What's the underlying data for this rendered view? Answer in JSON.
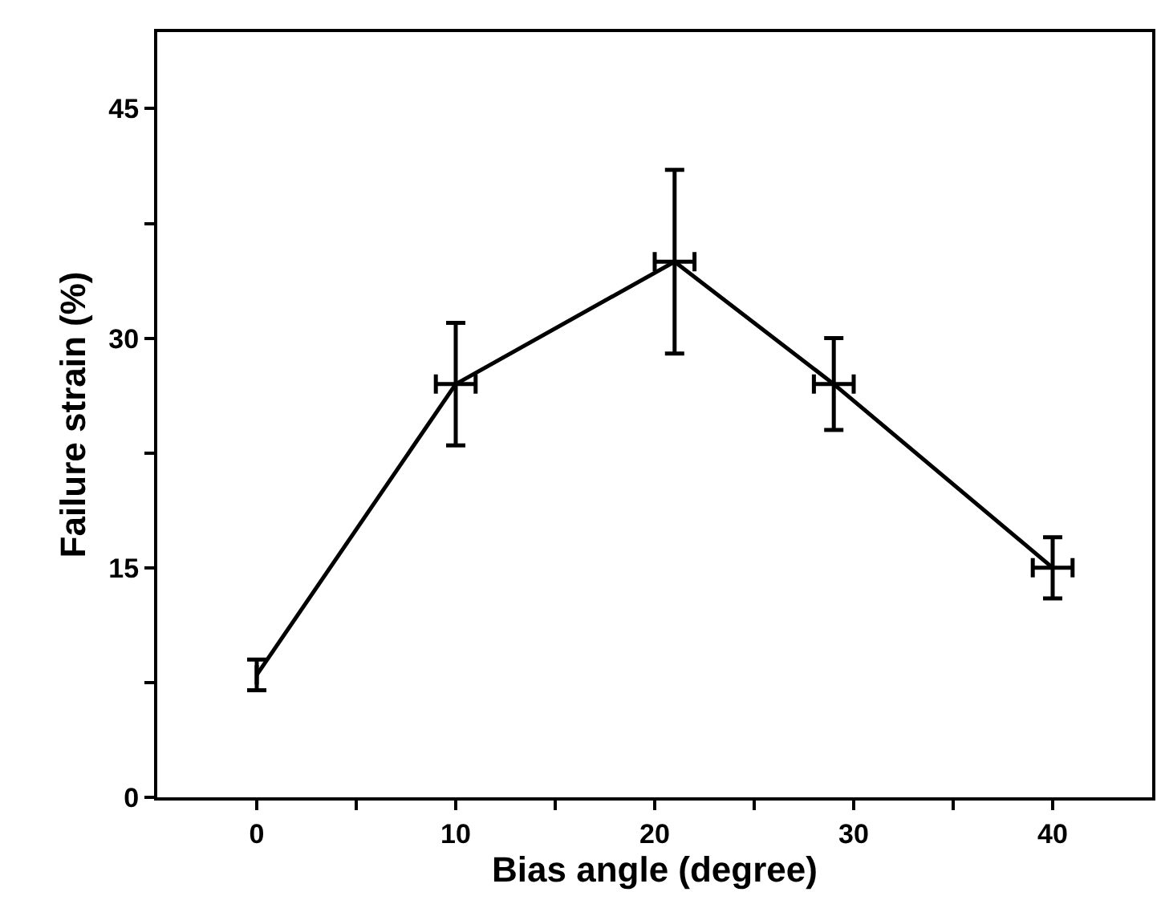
{
  "chart_data": {
    "type": "line",
    "xlabel": "Bias angle (degree)",
    "ylabel": "Failure strain (%)",
    "x": [
      0,
      10,
      21,
      29,
      40
    ],
    "series": [
      {
        "color": "#000000",
        "values": [
          8,
          27,
          35,
          27,
          15
        ],
        "errors": [
          1,
          4,
          6,
          3,
          2
        ],
        "xerrors": [
          null,
          1,
          1,
          1,
          1
        ]
      }
    ],
    "xlim": [
      -5,
      45
    ],
    "ylim": [
      0,
      50
    ],
    "xticks": [
      0,
      {
        "value": 5,
        "label": null
      },
      10,
      {
        "value": 15,
        "label": null
      },
      20,
      {
        "value": 25,
        "label": null
      },
      30,
      {
        "value": 35,
        "label": null
      },
      40
    ],
    "yticks": [
      0,
      {
        "value": 7.5,
        "label": null
      },
      15,
      {
        "value": 22.5,
        "label": null
      },
      30,
      {
        "value": 37.5,
        "label": null
      },
      45
    ],
    "marker": "none",
    "line_style": "solid"
  }
}
